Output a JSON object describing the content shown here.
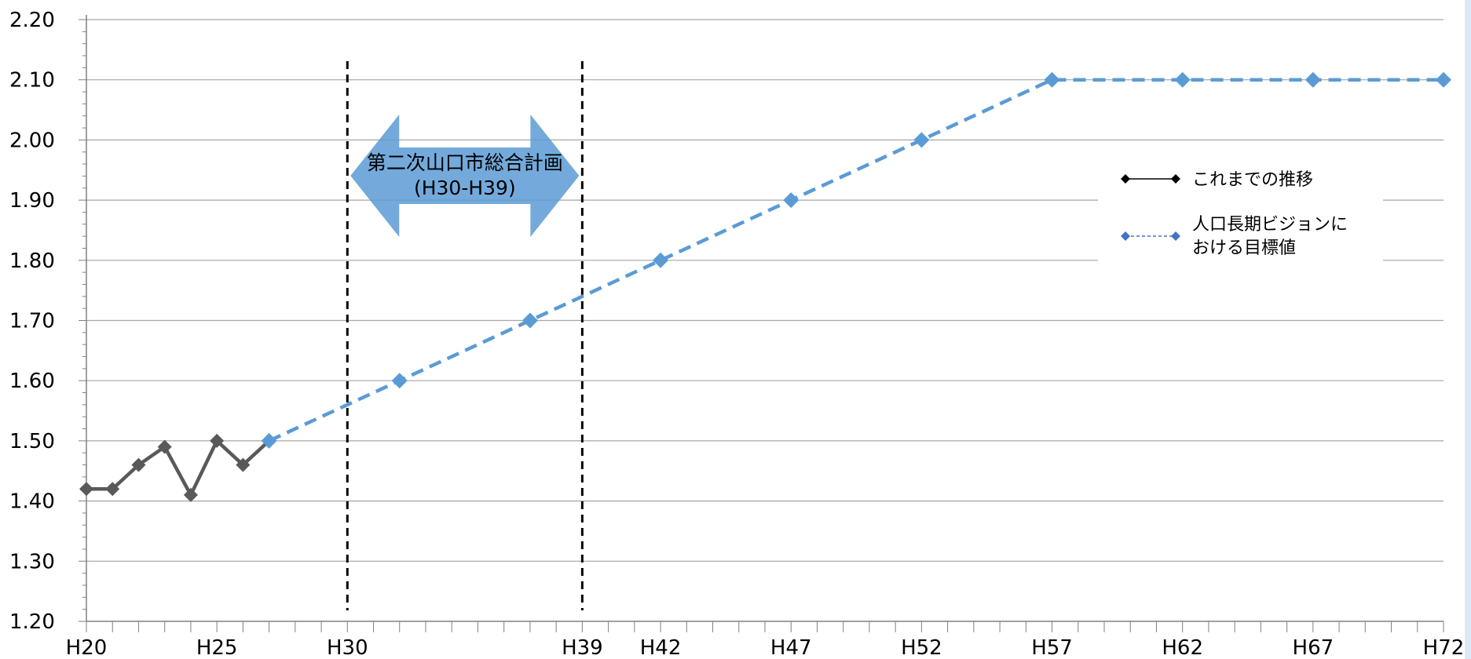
{
  "chart_data": {
    "type": "line",
    "ylim": [
      1.2,
      2.2
    ],
    "yticks": [
      "1.20",
      "1.30",
      "1.40",
      "1.50",
      "1.60",
      "1.70",
      "1.80",
      "1.90",
      "2.00",
      "2.10",
      "2.20"
    ],
    "xlim": [
      20,
      72
    ],
    "xticks": [
      {
        "x": 20,
        "label": "H20"
      },
      {
        "x": 25,
        "label": "H25"
      },
      {
        "x": 30,
        "label": "H30"
      },
      {
        "x": 39,
        "label": "H39"
      },
      {
        "x": 42,
        "label": "H42"
      },
      {
        "x": 47,
        "label": "H47"
      },
      {
        "x": 52,
        "label": "H52"
      },
      {
        "x": 57,
        "label": "H57"
      },
      {
        "x": 62,
        "label": "H62"
      },
      {
        "x": 67,
        "label": "H67"
      },
      {
        "x": 72,
        "label": "H72"
      }
    ],
    "grid": true,
    "legend_position": "right",
    "series": [
      {
        "name": "これまでの推移",
        "color": "#595959",
        "style": "solid",
        "x": [
          20,
          21,
          22,
          23,
          24,
          25,
          26,
          27
        ],
        "values": [
          1.42,
          1.42,
          1.46,
          1.49,
          1.41,
          1.5,
          1.46,
          1.5
        ]
      },
      {
        "name": "人口長期ビジョンにおける目標値",
        "color": "#5b9bd5",
        "style": "dashed",
        "x": [
          27,
          32,
          37,
          42,
          47,
          52,
          57,
          62,
          67,
          72
        ],
        "values": [
          1.5,
          1.6,
          1.7,
          1.8,
          1.9,
          2.0,
          2.1,
          2.1,
          2.1,
          2.1
        ]
      }
    ],
    "reference_lines": [
      {
        "x": 30
      },
      {
        "x": 39
      }
    ],
    "annotation": {
      "line1": "第二次山口市総合計画",
      "line2": "(H30-H39)",
      "from_x": 30,
      "to_x": 39,
      "color": "#5b9bd5"
    },
    "legend": {
      "item1": "これまでの推移",
      "item2_line1": "人口長期ビジョンに",
      "item2_line2": "おける目標値"
    }
  }
}
